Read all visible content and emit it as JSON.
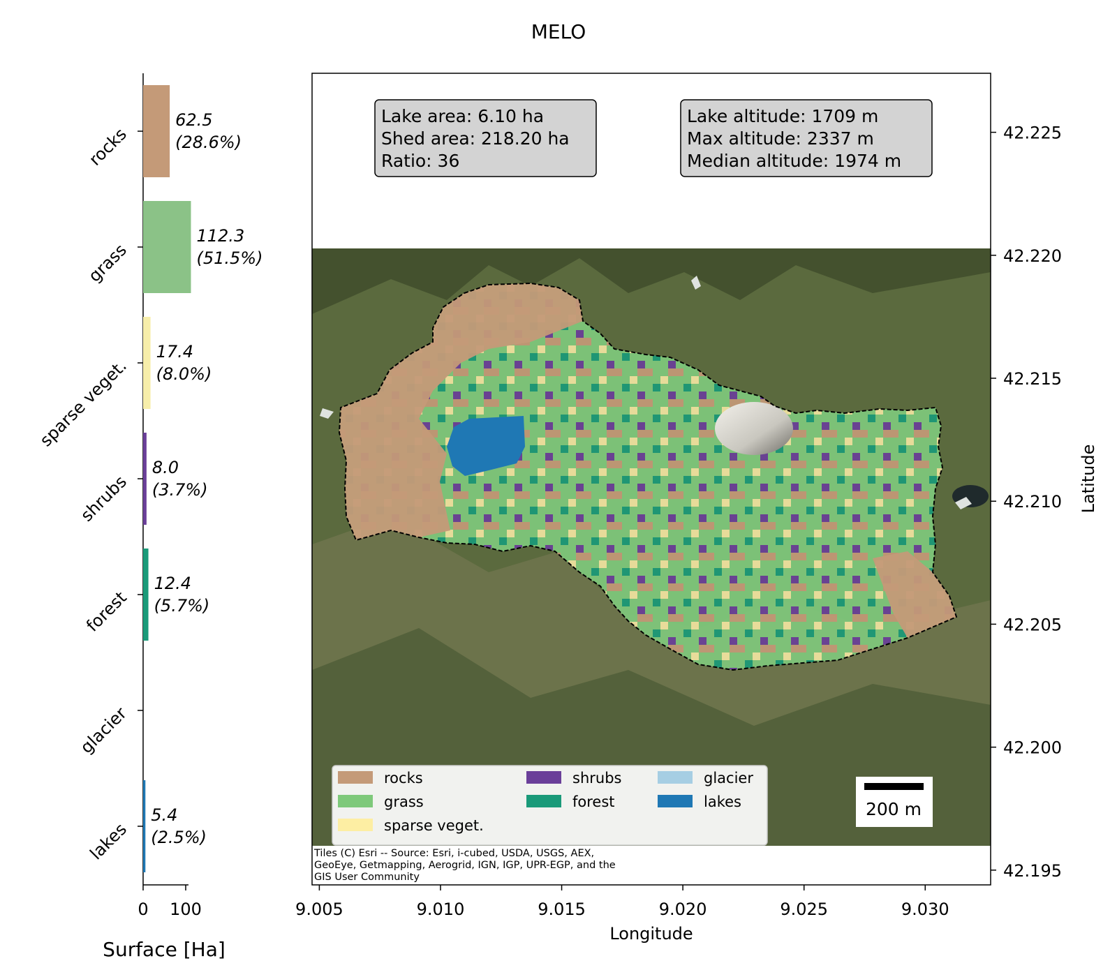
{
  "chart_data": [
    {
      "type": "bar",
      "orientation": "horizontal",
      "title": "MELO",
      "categories": [
        "rocks",
        "grass",
        "sparse veget.",
        "shrubs",
        "forest",
        "glacier",
        "lakes"
      ],
      "values": [
        62.5,
        112.3,
        17.4,
        8.0,
        12.4,
        0,
        5.4
      ],
      "value_labels": [
        "62.5",
        "112.3",
        "17.4",
        "8.0",
        "12.4",
        "",
        "5.4"
      ],
      "percent_labels": [
        "(28.6%)",
        "(51.5%)",
        "(8.0%)",
        "(3.7%)",
        "(5.7%)",
        "",
        "(2.5%)"
      ],
      "colors": [
        "#c49a78",
        "#8bc287",
        "#f7eeaa",
        "#6a3f99",
        "#1a9a79",
        "#a6cee3",
        "#1f78b4"
      ],
      "xlabel": "Surface [Ha]",
      "xlim": [
        0,
        112.3
      ],
      "xticks": [
        0,
        100
      ],
      "xtick_labels": [
        "0",
        "100"
      ]
    },
    {
      "type": "map",
      "xlabel": "Longitude",
      "ylabel": "Latitude",
      "xlim": [
        9.0047,
        9.0327
      ],
      "ylim": [
        42.1944,
        42.2274
      ],
      "map_bounds_lat": [
        42.1972,
        42.2203
      ],
      "xticks": [
        9.005,
        9.01,
        9.015,
        9.02,
        9.025,
        9.03
      ],
      "xtick_labels": [
        "9.005",
        "9.010",
        "9.015",
        "9.020",
        "9.025",
        "9.030"
      ],
      "yticks": [
        42.195,
        42.2,
        42.205,
        42.21,
        42.215,
        42.22,
        42.225
      ],
      "ytick_labels": [
        "42.195",
        "42.200",
        "42.205",
        "42.210",
        "42.215",
        "42.220",
        "42.225"
      ],
      "info_left": [
        "Lake area: 6.10 ha",
        "Shed area: 218.20 ha",
        "Ratio: 36"
      ],
      "info_right": [
        "Lake altitude: 1709 m",
        "Max altitude: 2337 m",
        "Median altitude: 1974 m"
      ],
      "legend": [
        {
          "label": "rocks",
          "color": "#c49a78"
        },
        {
          "label": "grass",
          "color": "#7ec97a"
        },
        {
          "label": "sparse veget.",
          "color": "#fdeea3"
        },
        {
          "label": "shrubs",
          "color": "#6a3f99"
        },
        {
          "label": "forest",
          "color": "#1a9a79"
        },
        {
          "label": "glacier",
          "color": "#a6cee3"
        },
        {
          "label": "lakes",
          "color": "#1f78b4"
        }
      ],
      "scale_bar_label": "200 m",
      "attribution": [
        "Tiles (C) Esri -- Source: Esri, i-cubed, USDA, USGS, AEX,",
        "GeoEye, Getmapping, Aerogrid, IGN, IGP, UPR-EGP, and the",
        "GIS User Community"
      ]
    }
  ]
}
